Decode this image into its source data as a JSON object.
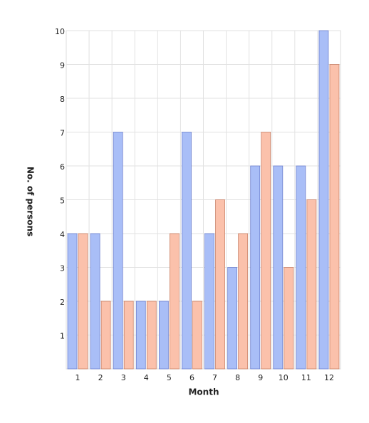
{
  "chart_data": {
    "type": "bar",
    "x_label": "Month",
    "y_label": "No. of persons",
    "categories": [
      "1",
      "2",
      "3",
      "4",
      "5",
      "6",
      "7",
      "8",
      "9",
      "10",
      "11",
      "12"
    ],
    "series": [
      {
        "color": "#a9bef7",
        "values": [
          4,
          4,
          7,
          2,
          2,
          7,
          4,
          3,
          6,
          6,
          6,
          10
        ]
      },
      {
        "color": "#fbc1ab",
        "values": [
          4,
          2,
          2,
          2,
          4,
          2,
          5,
          4,
          7,
          3,
          5,
          9
        ]
      }
    ],
    "ylim": [
      0,
      10
    ],
    "yticks": [
      1,
      2,
      3,
      4,
      5,
      6,
      7,
      8,
      9,
      10
    ],
    "grid": true
  }
}
